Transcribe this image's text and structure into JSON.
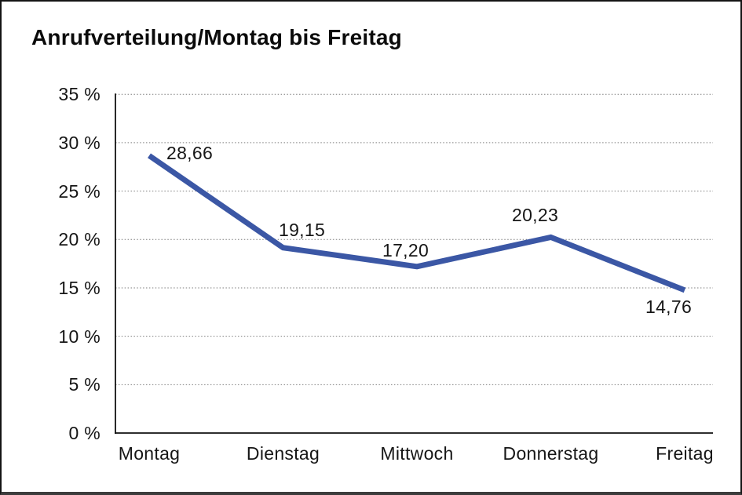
{
  "chart_data": {
    "type": "line",
    "title": "Anrufverteilung/Montag bis Freitag",
    "categories": [
      "Montag",
      "Dienstag",
      "Mittwoch",
      "Donnerstag",
      "Freitag"
    ],
    "values": [
      28.66,
      19.15,
      17.2,
      20.23,
      14.76
    ],
    "value_labels": [
      "28,66",
      "19,15",
      "17,20",
      "20,23",
      "14,76"
    ],
    "yticks": [
      {
        "label": "35 %",
        "value": 35
      },
      {
        "label": "30 %",
        "value": 30
      },
      {
        "label": "25 %",
        "value": 25
      },
      {
        "label": "20 %",
        "value": 20
      },
      {
        "label": "15 %",
        "value": 15
      },
      {
        "label": "10 %",
        "value": 10
      },
      {
        "label": "5 %",
        "value": 5
      },
      {
        "label": "0 %",
        "value": 0
      }
    ],
    "ylim": [
      0,
      35
    ],
    "grid": "horizontal-dotted",
    "legend": "none",
    "line_color": "#3B57A5",
    "axis_color": "#111111",
    "gridline_color": "#7d7d7d",
    "text_color": "#161616"
  }
}
